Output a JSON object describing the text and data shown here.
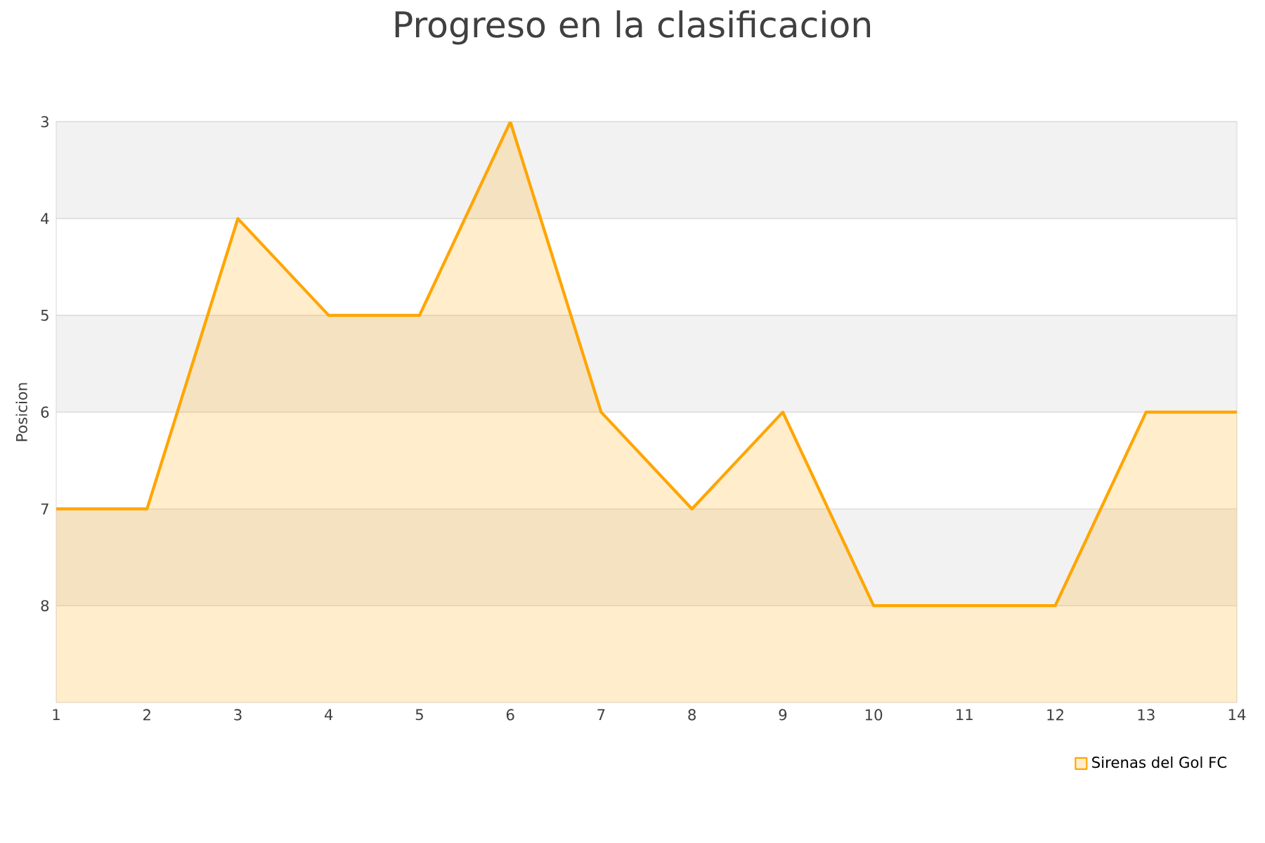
{
  "chart_data": {
    "type": "line",
    "title": "Progreso en la clasificacion",
    "ylabel": "Posicion",
    "x": [
      1,
      2,
      3,
      4,
      5,
      6,
      7,
      8,
      9,
      10,
      11,
      12,
      13,
      14
    ],
    "series": [
      {
        "name": "Sirenas del Gol FC",
        "color": "#ffa500",
        "values": [
          7,
          7,
          4,
          5,
          5,
          3,
          6,
          7,
          6,
          8,
          8,
          8,
          6,
          6
        ],
        "lower": [
          9,
          9,
          9,
          9,
          9,
          9,
          9,
          9,
          9,
          9,
          9,
          9,
          9,
          9
        ],
        "upper": [
          7,
          7,
          4,
          5,
          5,
          3,
          6,
          7,
          6,
          8,
          8,
          8,
          6,
          6
        ]
      }
    ],
    "xlim": [
      1,
      14
    ],
    "xticks": [
      1,
      2,
      3,
      4,
      5,
      6,
      7,
      8,
      9,
      10,
      11,
      12,
      13,
      14
    ],
    "ylim": [
      9,
      3
    ],
    "yticks": [
      3,
      4,
      5,
      6,
      7,
      8
    ],
    "bands": [
      {
        "axis": "y",
        "from": 3,
        "to": 4,
        "color": "#f2f2f2"
      },
      {
        "axis": "y",
        "from": 5,
        "to": 6,
        "color": "#f2f2f2"
      },
      {
        "axis": "y",
        "from": 7,
        "to": 8,
        "color": "#f2f2f2"
      }
    ],
    "grid": "y",
    "legend": "bottom right",
    "marker": "none",
    "line_style": "solid"
  }
}
